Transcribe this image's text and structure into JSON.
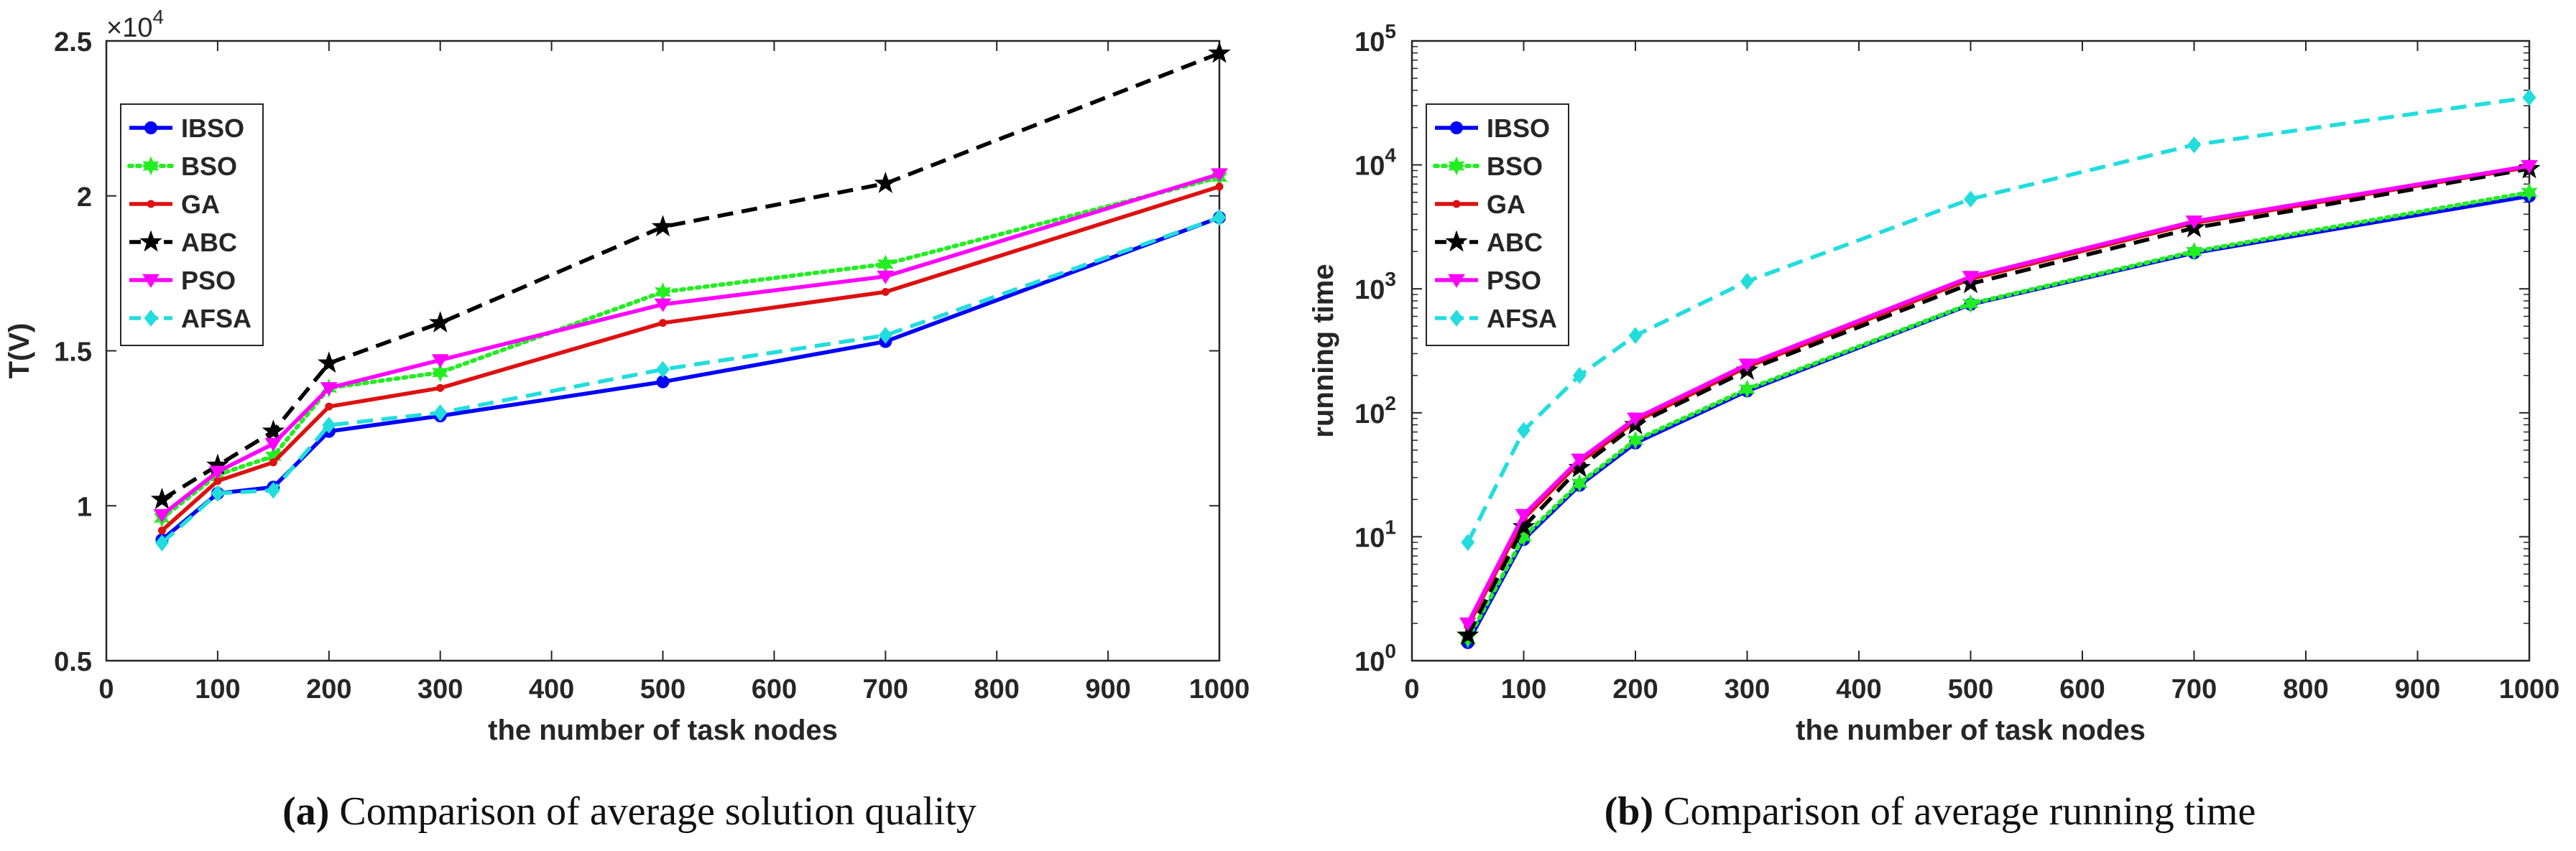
{
  "chart_data": [
    {
      "type": "line",
      "caption_label": "(a)",
      "caption_text": "Comparison of average solution quality",
      "xlabel": "the number of task nodes",
      "ylabel": "T(V)",
      "y_multiplier": "×10^4",
      "y_multiplier_base": "×10",
      "y_multiplier_exp": "4",
      "xlim": [
        0,
        1000
      ],
      "ylim": [
        0.5,
        2.5
      ],
      "yscale": "linear",
      "grid": false,
      "legend_position": "top-left",
      "x_ticks": [
        0,
        100,
        200,
        300,
        400,
        500,
        600,
        700,
        800,
        900,
        1000
      ],
      "x_tick_labels": [
        "0",
        "100",
        "200",
        "300",
        "400",
        "500",
        "600",
        "700",
        "800",
        "900",
        "1000"
      ],
      "y_ticks": [
        0.5,
        1,
        1.5,
        2,
        2.5
      ],
      "y_tick_labels": [
        "0.5",
        "1",
        "1.5",
        "2",
        "2.5"
      ],
      "x": [
        50,
        100,
        150,
        200,
        300,
        500,
        700,
        1000
      ],
      "series": [
        {
          "name": "IBSO",
          "color": "#0000ff",
          "style": "solid",
          "marker": "circle",
          "values": [
            0.89,
            1.04,
            1.06,
            1.24,
            1.29,
            1.4,
            1.53,
            1.93
          ]
        },
        {
          "name": "BSO",
          "color": "#22ee22",
          "style": "dotted",
          "marker": "star6",
          "values": [
            0.96,
            1.1,
            1.16,
            1.38,
            1.43,
            1.69,
            1.78,
            2.06
          ]
        },
        {
          "name": "GA",
          "color": "#dd1111",
          "style": "solid",
          "marker": "dot",
          "values": [
            0.92,
            1.08,
            1.14,
            1.32,
            1.38,
            1.59,
            1.69,
            2.03
          ]
        },
        {
          "name": "ABC",
          "color": "#000000",
          "style": "dashed",
          "marker": "star5",
          "values": [
            1.02,
            1.13,
            1.24,
            1.46,
            1.59,
            1.9,
            2.04,
            2.46
          ]
        },
        {
          "name": "PSO",
          "color": "#ff00ff",
          "style": "solid",
          "marker": "triangle-down",
          "values": [
            0.97,
            1.11,
            1.2,
            1.38,
            1.47,
            1.65,
            1.74,
            2.07
          ]
        },
        {
          "name": "AFSA",
          "color": "#22dddd",
          "style": "dashed",
          "marker": "diamond",
          "values": [
            0.88,
            1.04,
            1.05,
            1.26,
            1.3,
            1.44,
            1.55,
            1.93
          ]
        }
      ]
    },
    {
      "type": "line",
      "caption_label": "(b)",
      "caption_text": "Comparison of average running time",
      "xlabel": "the number of task nodes",
      "ylabel": "running time",
      "xlim": [
        0,
        1000
      ],
      "ylim": [
        1,
        100000
      ],
      "yscale": "log",
      "grid": false,
      "legend_position": "top-left",
      "x_ticks": [
        0,
        100,
        200,
        300,
        400,
        500,
        600,
        700,
        800,
        900,
        1000
      ],
      "x_tick_labels": [
        "0",
        "100",
        "200",
        "300",
        "400",
        "500",
        "600",
        "700",
        "800",
        "900",
        "1000"
      ],
      "y_ticks": [
        1,
        10,
        100,
        1000,
        10000,
        100000
      ],
      "y_tick_exponents": [
        "0",
        "1",
        "2",
        "3",
        "4",
        "5"
      ],
      "y_tick_base": "10",
      "x": [
        50,
        100,
        150,
        200,
        300,
        500,
        700,
        1000
      ],
      "series": [
        {
          "name": "IBSO",
          "color": "#0000ff",
          "style": "solid",
          "marker": "circle",
          "values": [
            1.4,
            9.5,
            26,
            57,
            150,
            750,
            1950,
            5600
          ]
        },
        {
          "name": "BSO",
          "color": "#22ee22",
          "style": "dotted",
          "marker": "star6",
          "values": [
            1.5,
            10,
            27,
            60,
            155,
            760,
            2000,
            6000
          ]
        },
        {
          "name": "GA",
          "color": "#dd1111",
          "style": "solid",
          "marker": "dot",
          "values": [
            1.9,
            14,
            40,
            85,
            235,
            1200,
            3400,
            9600
          ]
        },
        {
          "name": "ABC",
          "color": "#000000",
          "style": "dashed",
          "marker": "star5",
          "values": [
            1.6,
            12,
            36,
            80,
            220,
            1100,
            3100,
            9300
          ]
        },
        {
          "name": "PSO",
          "color": "#ff00ff",
          "style": "solid",
          "marker": "triangle-down",
          "values": [
            2.0,
            15,
            42,
            90,
            245,
            1250,
            3500,
            9800
          ]
        },
        {
          "name": "AFSA",
          "color": "#22dddd",
          "style": "dashed",
          "marker": "diamond",
          "values": [
            9,
            72,
            200,
            420,
            1150,
            5300,
            14500,
            35000
          ]
        }
      ]
    }
  ]
}
